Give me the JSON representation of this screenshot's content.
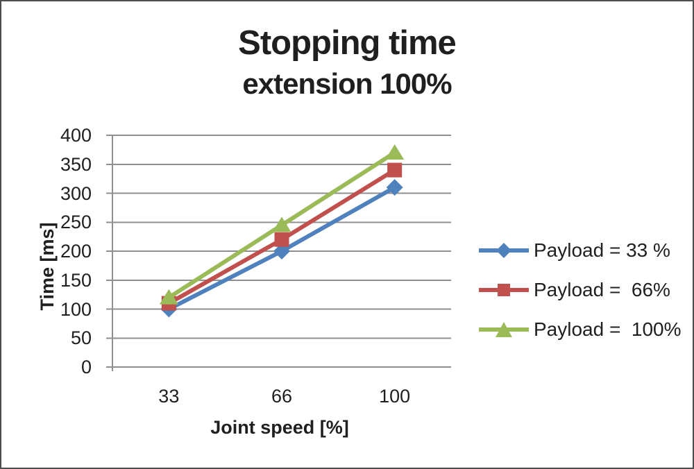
{
  "chart_data": {
    "type": "line",
    "title": "Stopping time",
    "subtitle": "extension 100%",
    "xlabel": "Joint speed [%]",
    "ylabel": "Time [ms]",
    "categories": [
      "33",
      "66",
      "100"
    ],
    "yticks": [
      0,
      50,
      100,
      150,
      200,
      250,
      300,
      350,
      400
    ],
    "ylim": [
      0,
      400
    ],
    "grid": true,
    "legend_position": "right",
    "series": [
      {
        "name": "Payload = 33 %",
        "values": [
          100,
          200,
          310
        ],
        "color": "#4F81BD",
        "marker": "diamond"
      },
      {
        "name": "Payload =  66%",
        "values": [
          110,
          220,
          340
        ],
        "color": "#C0504D",
        "marker": "square"
      },
      {
        "name": "Payload =  100%",
        "values": [
          120,
          245,
          370
        ],
        "color": "#9BBB59",
        "marker": "triangle"
      }
    ],
    "colors": {
      "gridline": "#8f8f8f",
      "axis": "#8f8f8f",
      "text": "#1f1f1f",
      "background": "#ffffff",
      "frame_border": "#4d4d4d"
    }
  }
}
